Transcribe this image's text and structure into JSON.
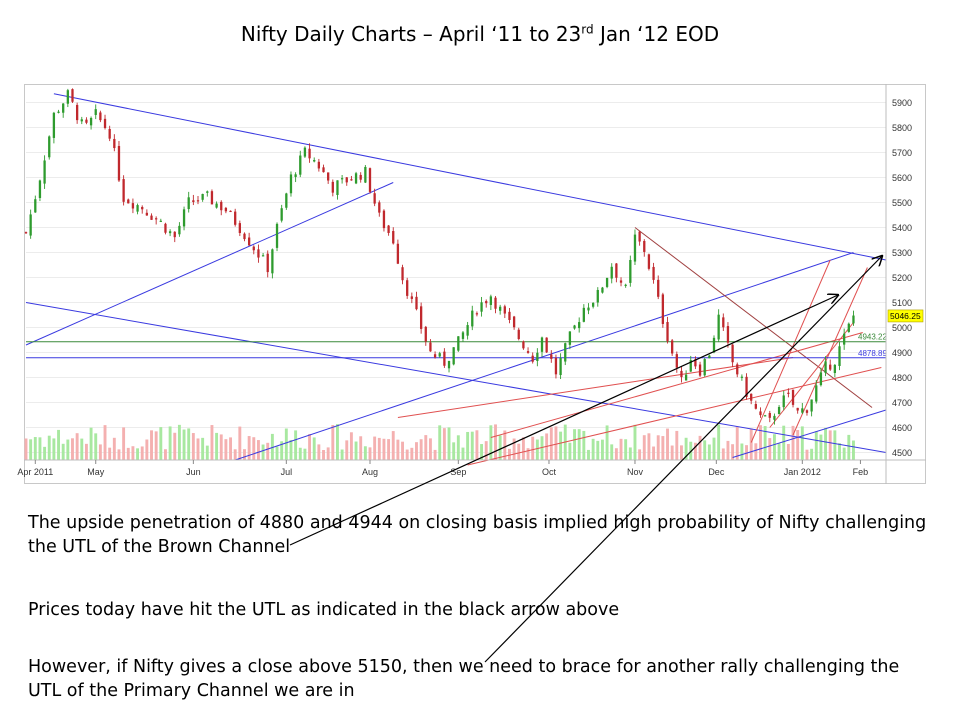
{
  "slide": {
    "title_pre": "Nifty Daily Charts – April ‘11 to 23",
    "title_sup": "rd",
    "title_post": " Jan ‘12 EOD",
    "notes": [
      "The upside penetration of 4880 and 4944 on closing basis implied high probability of Nifty challenging the UTL of the Brown Channel",
      "Prices today have hit the UTL as indicated in the black arrow above",
      "However, if Nifty gives a close above 5150, then we need to brace for another rally challenging the UTL of the Primary Channel we are in"
    ]
  },
  "colors": {
    "up_candle": "#2e9b2e",
    "down_candle": "#c0282d",
    "up_volume": "#a8e8a0",
    "down_volume": "#f4b0b0",
    "channel_blue": "#3a3ae0",
    "channel_brown": "#a04040",
    "channel_red": "#e05050",
    "level_green": "#3a8a3a",
    "arrow": "#000000",
    "price_tag": "#ffff00"
  },
  "chart_data": {
    "type": "candlestick",
    "instrument": "Nifty",
    "y_axis_ticks": [
      4500,
      4600,
      4700,
      4800,
      4900,
      5000,
      5100,
      5200,
      5300,
      5400,
      5500,
      5600,
      5700,
      5800,
      5900
    ],
    "ylim": [
      4470,
      5950
    ],
    "x_month_labels": [
      "Apr 2011",
      "May",
      "Jun",
      "Jul",
      "Aug",
      "Sep",
      "Oct",
      "Nov",
      "Dec",
      "Jan 2012",
      "Feb"
    ],
    "x_month_start_index": [
      4,
      30,
      72,
      112,
      148,
      186,
      225,
      262,
      297,
      334,
      359
    ],
    "x_total_days": 370,
    "last_price": "5046.25",
    "horizontal_levels": [
      {
        "value": 4943.22,
        "label": "4943.22",
        "color_key": "level_green"
      },
      {
        "value": 4878.89,
        "label": "4878.89",
        "color_key": "channel_blue"
      }
    ],
    "closes_anchor": [
      [
        0,
        5380
      ],
      [
        5,
        5560
      ],
      [
        12,
        5850
      ],
      [
        18,
        5930
      ],
      [
        25,
        5790
      ],
      [
        30,
        5850
      ],
      [
        36,
        5780
      ],
      [
        42,
        5520
      ],
      [
        50,
        5480
      ],
      [
        58,
        5420
      ],
      [
        64,
        5360
      ],
      [
        70,
        5500
      ],
      [
        78,
        5520
      ],
      [
        86,
        5470
      ],
      [
        92,
        5400
      ],
      [
        98,
        5320
      ],
      [
        104,
        5240
      ],
      [
        108,
        5400
      ],
      [
        114,
        5600
      ],
      [
        120,
        5700
      ],
      [
        125,
        5660
      ],
      [
        132,
        5560
      ],
      [
        140,
        5600
      ],
      [
        146,
        5620
      ],
      [
        152,
        5440
      ],
      [
        158,
        5350
      ],
      [
        162,
        5200
      ],
      [
        166,
        5100
      ],
      [
        170,
        5000
      ],
      [
        174,
        4900
      ],
      [
        180,
        4860
      ],
      [
        186,
        4940
      ],
      [
        194,
        5080
      ],
      [
        200,
        5130
      ],
      [
        206,
        5040
      ],
      [
        212,
        4960
      ],
      [
        218,
        4880
      ],
      [
        222,
        4960
      ],
      [
        228,
        4820
      ],
      [
        234,
        4960
      ],
      [
        240,
        5080
      ],
      [
        246,
        5130
      ],
      [
        252,
        5250
      ],
      [
        258,
        5150
      ],
      [
        262,
        5360
      ],
      [
        266,
        5310
      ],
      [
        270,
        5180
      ],
      [
        274,
        5030
      ],
      [
        278,
        4900
      ],
      [
        282,
        4780
      ],
      [
        286,
        4880
      ],
      [
        290,
        4830
      ],
      [
        294,
        4900
      ],
      [
        298,
        5040
      ],
      [
        300,
        4980
      ],
      [
        304,
        4860
      ],
      [
        308,
        4780
      ],
      [
        312,
        4700
      ],
      [
        316,
        4640
      ],
      [
        320,
        4620
      ],
      [
        324,
        4700
      ],
      [
        328,
        4720
      ],
      [
        332,
        4660
      ],
      [
        336,
        4680
      ],
      [
        340,
        4760
      ],
      [
        344,
        4840
      ],
      [
        348,
        4870
      ],
      [
        352,
        4960
      ],
      [
        356,
        5046
      ]
    ],
    "trendlines": [
      {
        "color_key": "channel_blue",
        "from": [
          12,
          5935
        ],
        "to": [
          370,
          5270
        ]
      },
      {
        "color_key": "channel_blue",
        "from": [
          0,
          5100
        ],
        "to": [
          370,
          4500
        ]
      },
      {
        "color_key": "channel_blue",
        "from": [
          0,
          4930
        ],
        "to": [
          158,
          5580
        ]
      },
      {
        "color_key": "channel_blue",
        "from": [
          90,
          4470
        ],
        "to": [
          356,
          5300
        ]
      },
      {
        "color_key": "channel_blue",
        "from": [
          304,
          4480
        ],
        "to": [
          370,
          4670
        ]
      },
      {
        "color_key": "channel_brown",
        "from": [
          262,
          5400
        ],
        "to": [
          364,
          4680
        ]
      },
      {
        "color_key": "channel_red",
        "from": [
          312,
          4540
        ],
        "to": [
          346,
          5270
        ]
      },
      {
        "color_key": "channel_red",
        "from": [
          330,
          4570
        ],
        "to": [
          362,
          5240
        ]
      },
      {
        "color_key": "channel_red",
        "from": [
          320,
          4600
        ],
        "to": [
          356,
          5020
        ]
      },
      {
        "color_key": "channel_red",
        "from": [
          200,
          4560
        ],
        "to": [
          360,
          4980
        ]
      },
      {
        "color_key": "channel_red",
        "from": [
          160,
          4640
        ],
        "to": [
          330,
          4880
        ]
      },
      {
        "color_key": "channel_red",
        "from": [
          190,
          4450
        ],
        "to": [
          368,
          4840
        ]
      }
    ]
  }
}
